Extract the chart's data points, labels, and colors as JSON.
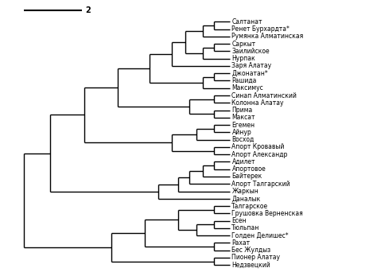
{
  "labels": [
    "Салтанат",
    "Ренет Бурхардта*",
    "Румянка Алматинская",
    "Саркыт",
    "Заилийское",
    "Нурпак",
    "Заря Алатау",
    "Джонатан*",
    "Рашида",
    "Максимус",
    "Синап Алматинский",
    "Колонна Алатау",
    "Прима",
    "Максат",
    "Егемен",
    "Айнур",
    "Восход",
    "Апорт Кровавый",
    "Апорт Александр",
    "Адилет",
    "Апортовое",
    "Байтерек",
    "Апорт Талгарский",
    "Жаркын",
    "Даналык",
    "Талгарское",
    "Грушовка Верненская",
    "Есен",
    "Тюльпан",
    "Голден Делишес*",
    "Рахат",
    "Бес Жулдыз",
    "Пионер Алатау",
    "Недзвецкий"
  ],
  "background_color": "#ffffff",
  "line_color": "#000000",
  "label_fontsize": 5.5,
  "scale_label": "2",
  "scale_fontsize": 7,
  "linewidth": 1.0
}
